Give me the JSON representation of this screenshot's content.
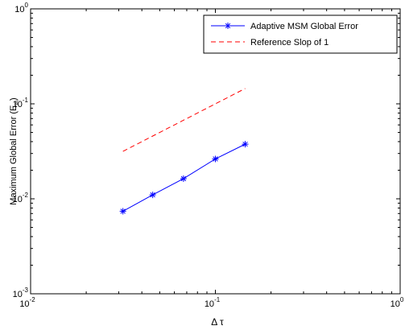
{
  "chart_data": {
    "type": "line",
    "xscale": "log",
    "yscale": "log",
    "xlim": [
      0.01,
      1
    ],
    "ylim": [
      0.001,
      1
    ],
    "grid": false,
    "legend_position": "top-right",
    "xlabel": "Δ τ",
    "ylabel_main": "Maximum Global Error (E",
    "ylabel_sub": "∞",
    "ylabel_tail": ")",
    "x_ticks": [
      {
        "base": "10",
        "exp": "-2",
        "value": 0.01
      },
      {
        "base": "10",
        "exp": "-1",
        "value": 0.1
      },
      {
        "base": "10",
        "exp": "0",
        "value": 1
      }
    ],
    "y_ticks": [
      {
        "base": "10",
        "exp": "-3",
        "value": 0.001
      },
      {
        "base": "10",
        "exp": "-2",
        "value": 0.01
      },
      {
        "base": "10",
        "exp": "-1",
        "value": 0.1
      },
      {
        "base": "10",
        "exp": "0",
        "value": 1
      }
    ],
    "series": [
      {
        "name": "Adaptive MSM Global Error",
        "color": "#0000ff",
        "style": "solid",
        "marker": "asterisk",
        "x": [
          0.0316,
          0.0458,
          0.0672,
          0.1,
          0.145
        ],
        "y": [
          0.0074,
          0.011,
          0.0163,
          0.0263,
          0.0376
        ]
      },
      {
        "name": "Reference Slop of 1",
        "color": "#ff0000",
        "style": "dashed",
        "marker": "none",
        "x": [
          0.0316,
          0.145
        ],
        "y": [
          0.0316,
          0.145
        ]
      }
    ]
  }
}
